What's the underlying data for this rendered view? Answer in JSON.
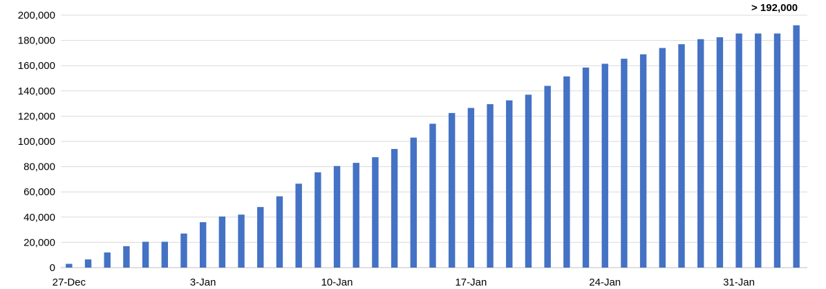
{
  "chart_data": {
    "type": "bar",
    "title": "",
    "xlabel": "",
    "ylabel": "",
    "ylim": [
      0,
      200000
    ],
    "y_ticks": [
      0,
      20000,
      40000,
      60000,
      80000,
      100000,
      120000,
      140000,
      160000,
      180000,
      200000
    ],
    "y_tick_labels": [
      "0",
      "20,000",
      "40,000",
      "60,000",
      "80,000",
      "100,000",
      "120,000",
      "140,000",
      "160,000",
      "180,000",
      "200,000"
    ],
    "x_tick_labels": [
      {
        "label": "27-Dec",
        "index": 0
      },
      {
        "label": "3-Jan",
        "index": 7
      },
      {
        "label": "10-Jan",
        "index": 14
      },
      {
        "label": "17-Jan",
        "index": 21
      },
      {
        "label": "24-Jan",
        "index": 28
      },
      {
        "label": "31-Jan",
        "index": 35
      }
    ],
    "grid": true,
    "bar_color": "#4472C4",
    "grid_color": "#d9d9d9",
    "categories": [
      "27-Dec",
      "28-Dec",
      "29-Dec",
      "30-Dec",
      "31-Dec",
      "1-Jan",
      "2-Jan",
      "3-Jan",
      "4-Jan",
      "5-Jan",
      "6-Jan",
      "7-Jan",
      "8-Jan",
      "9-Jan",
      "10-Jan",
      "11-Jan",
      "12-Jan",
      "13-Jan",
      "14-Jan",
      "15-Jan",
      "16-Jan",
      "17-Jan",
      "18-Jan",
      "19-Jan",
      "20-Jan",
      "21-Jan",
      "22-Jan",
      "23-Jan",
      "24-Jan",
      "25-Jan",
      "26-Jan",
      "27-Jan",
      "28-Jan",
      "29-Jan",
      "30-Jan",
      "31-Jan",
      "1-Feb",
      "2-Feb",
      "3-Feb"
    ],
    "values": [
      3000,
      6500,
      12000,
      17000,
      20500,
      20500,
      27000,
      36000,
      40500,
      42000,
      48000,
      56500,
      66500,
      75500,
      80500,
      83000,
      87500,
      94000,
      103000,
      114000,
      122500,
      126500,
      129500,
      132500,
      137000,
      144000,
      151500,
      158500,
      161500,
      165500,
      169000,
      174000,
      177000,
      181000,
      182500,
      185500,
      185500,
      185500,
      192000
    ],
    "annotation": {
      "text": "> 192,000",
      "index": 38
    }
  }
}
